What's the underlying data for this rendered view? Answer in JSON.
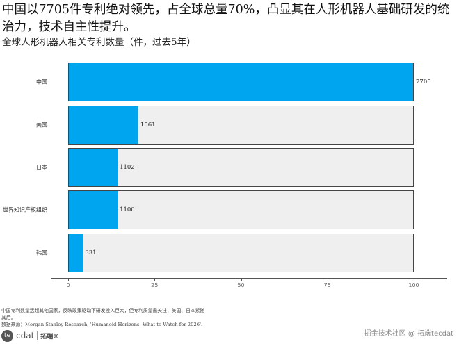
{
  "headline": "中国以7705件专利绝对领先，占全球总量70%，凸显其在人形机器人基础研发的统治力，技术自主性提升。",
  "subtitle": "全球人形机器人相关专利数量（件，过去5年）",
  "chart_data": {
    "type": "bar",
    "orientation": "horizontal",
    "title": "全球人形机器人相关专利数量（件，过去5年）",
    "categories": [
      "中国",
      "美国",
      "日本",
      "世界知识产权组织",
      "韩国"
    ],
    "values": [
      7705,
      1561,
      1102,
      1100,
      331
    ],
    "percent_of_max": [
      100,
      20.3,
      14.3,
      14.3,
      4.3
    ],
    "value_labels": [
      "7705",
      "1561",
      "1102",
      "1100",
      "331"
    ],
    "xlabel": "",
    "ylabel": "",
    "xlim": [
      0,
      100
    ],
    "x_ticks": [
      "0",
      "25",
      "50",
      "75",
      "100"
    ],
    "grid": false,
    "legend": null,
    "bar_color": "#00a5f0",
    "track_color": "#efefef"
  },
  "footnotes": {
    "line1": "中国专利数量远超其他国家，反映政策驱动下研发投入巨大，但专利质量需关注；美国、日本紧随",
    "line2": "其后。",
    "line3": "数据来源：Morgan Stanley Research, 'Humanoid Horizons: What to Watch for 2026'."
  },
  "logo": {
    "circle_text": "te",
    "text": "cdat",
    "cn": "拓端®"
  },
  "watermark": "掘金技术社区 @ 拓端tecdat"
}
